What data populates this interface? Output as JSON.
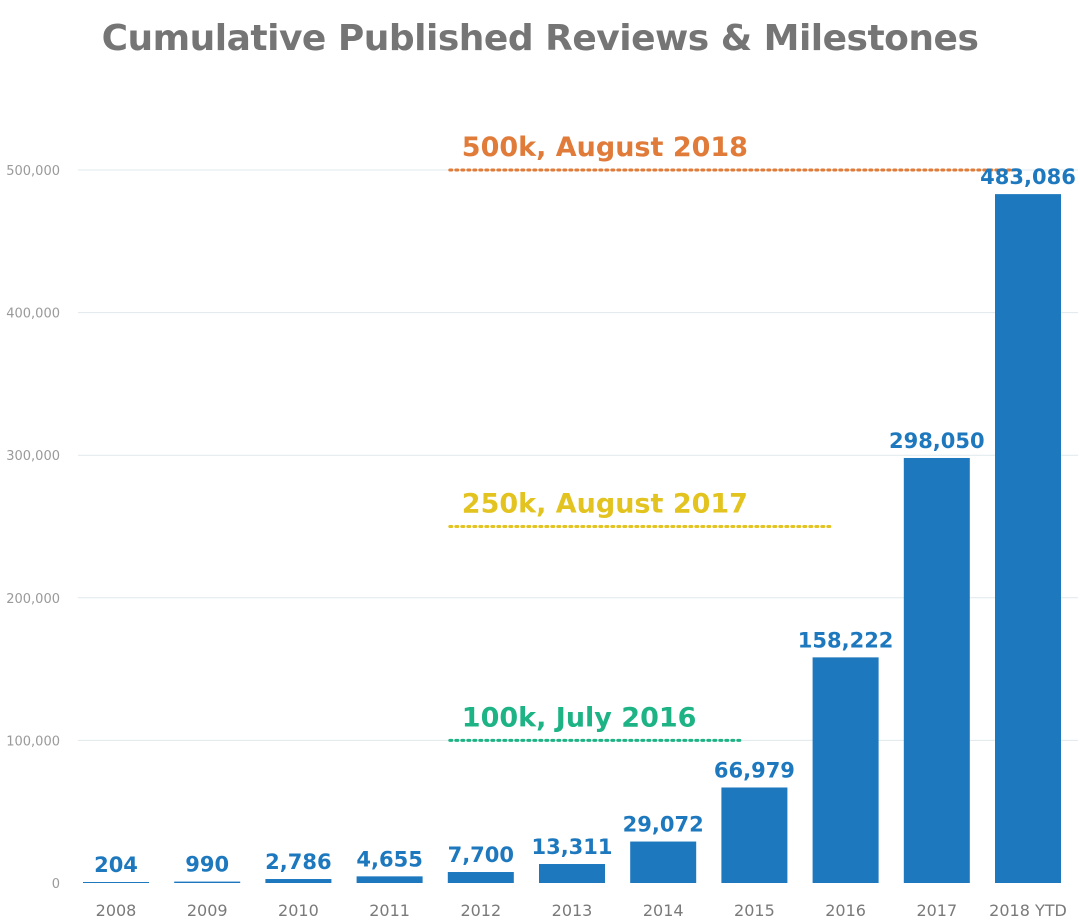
{
  "chart_data": {
    "type": "bar",
    "title": "Cumulative Published Reviews & Milestones",
    "xlabel": "",
    "ylabel": "",
    "categories": [
      "2008",
      "2009",
      "2010",
      "2011",
      "2012",
      "2013",
      "2014",
      "2015",
      "2016",
      "2017",
      "2018 YTD"
    ],
    "values": [
      204,
      990,
      2786,
      4655,
      7700,
      13311,
      29072,
      66979,
      158222,
      298050,
      483086
    ],
    "value_labels": [
      "204",
      "990",
      "2,786",
      "4,655",
      "7,700",
      "13,311",
      "29,072",
      "66,979",
      "158,222",
      "298,050",
      "483,086"
    ],
    "ylim": [
      0,
      500000
    ],
    "yticks": [
      0,
      100000,
      200000,
      300000,
      400000,
      500000
    ],
    "ytick_labels": [
      "0",
      "100,000",
      "200,000",
      "300,000",
      "400,000",
      "500,000"
    ],
    "grid": true,
    "bar_color": "#1d78be",
    "milestones": [
      {
        "label": "500k, August 2018",
        "value": 500000,
        "color": "#e07b39",
        "from_category": "2012",
        "to_category": "2018 YTD"
      },
      {
        "label": "250k, August 2017",
        "value": 250000,
        "color": "#e3c31f",
        "from_category": "2012",
        "to_category": "2016"
      },
      {
        "label": "100k, July 2016",
        "value": 100000,
        "color": "#1db385",
        "from_category": "2012",
        "to_category": "2015"
      }
    ]
  }
}
